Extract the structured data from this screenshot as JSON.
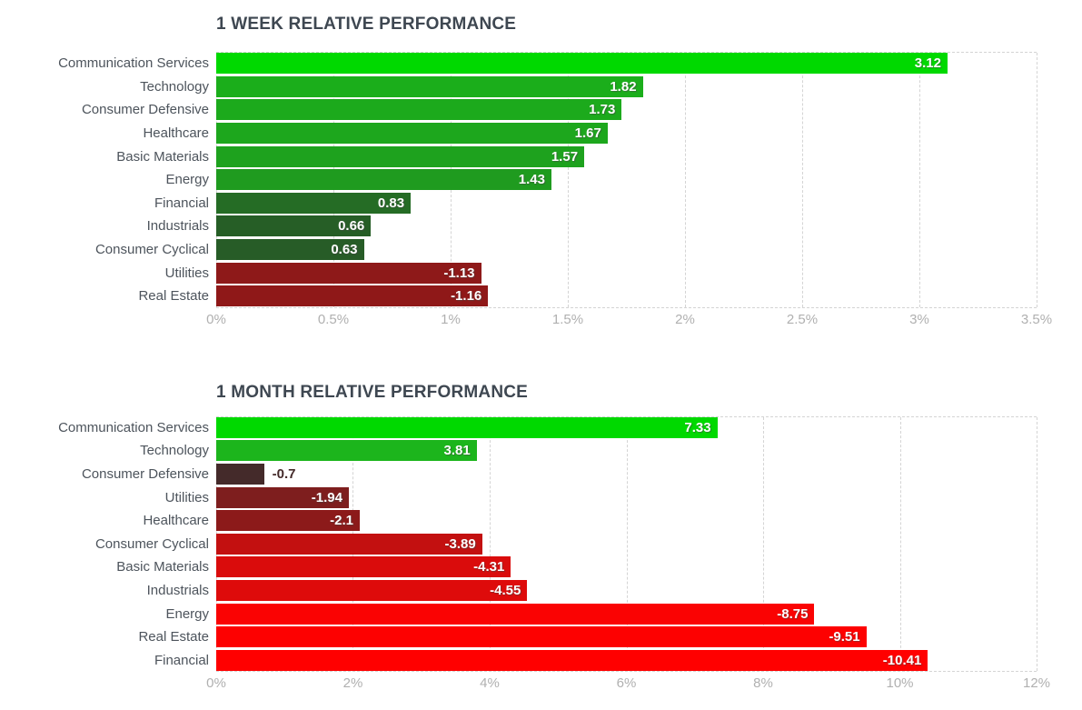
{
  "page": {
    "background": "#FFFFFF"
  },
  "styles": {
    "title_color": "#3E4751",
    "sector_label_color": "#4D545C",
    "axis_label_color": "#B0B0B0",
    "grid_color": "#D4D4D4",
    "bar_value_color": "#FFFFFF"
  },
  "chart_data": [
    {
      "type": "bar",
      "orientation": "horizontal",
      "title": "1 WEEK RELATIVE PERFORMANCE",
      "xlabel": "",
      "ylabel": "",
      "xlim": [
        0,
        3.5
      ],
      "grid": "dashed-vertical",
      "value_unit": "percent",
      "tick_labels": [
        "0%",
        "0.5%",
        "1%",
        "1.5%",
        "2%",
        "2.5%",
        "3%",
        "3.5%"
      ],
      "bars": [
        {
          "label": "Communication Services",
          "value": 3.12,
          "display": "3.12",
          "color": "#00D900"
        },
        {
          "label": "Technology",
          "value": 1.82,
          "display": "1.82",
          "color": "#1BAE1B"
        },
        {
          "label": "Consumer Defensive",
          "value": 1.73,
          "display": "1.73",
          "color": "#1CAA1C"
        },
        {
          "label": "Healthcare",
          "value": 1.67,
          "display": "1.67",
          "color": "#1DA71D"
        },
        {
          "label": "Basic Materials",
          "value": 1.57,
          "display": "1.57",
          "color": "#1EA21E"
        },
        {
          "label": "Energy",
          "value": 1.43,
          "display": "1.43",
          "color": "#1F9B1F"
        },
        {
          "label": "Financial",
          "value": 0.83,
          "display": "0.83",
          "color": "#256C25"
        },
        {
          "label": "Industrials",
          "value": 0.66,
          "display": "0.66",
          "color": "#265E26"
        },
        {
          "label": "Consumer Cyclical",
          "value": 0.63,
          "display": "0.63",
          "color": "#275C27"
        },
        {
          "label": "Utilities",
          "value": -1.13,
          "display": "-1.13",
          "color": "#8E1919"
        },
        {
          "label": "Real Estate",
          "value": -1.16,
          "display": "-1.16",
          "color": "#8F1818"
        }
      ]
    },
    {
      "type": "bar",
      "orientation": "horizontal",
      "title": "1 MONTH RELATIVE PERFORMANCE",
      "xlabel": "",
      "ylabel": "",
      "xlim": [
        0,
        12
      ],
      "grid": "dashed-vertical",
      "value_unit": "percent",
      "tick_labels": [
        "0%",
        "2%",
        "4%",
        "6%",
        "8%",
        "10%",
        "12%"
      ],
      "bars": [
        {
          "label": "Communication Services",
          "value": 7.33,
          "display": "7.33",
          "color": "#00D900"
        },
        {
          "label": "Technology",
          "value": 3.81,
          "display": "3.81",
          "color": "#1CB51C"
        },
        {
          "label": "Consumer Defensive",
          "value": -0.7,
          "display": "-0.7",
          "color": "#442A2A"
        },
        {
          "label": "Utilities",
          "value": -1.94,
          "display": "-1.94",
          "color": "#7E1E1E"
        },
        {
          "label": "Healthcare",
          "value": -2.1,
          "display": "-2.1",
          "color": "#8C1A1A"
        },
        {
          "label": "Consumer Cyclical",
          "value": -3.89,
          "display": "-3.89",
          "color": "#C31010"
        },
        {
          "label": "Basic Materials",
          "value": -4.31,
          "display": "-4.31",
          "color": "#DA0C0C"
        },
        {
          "label": "Industrials",
          "value": -4.55,
          "display": "-4.55",
          "color": "#DE0B0B"
        },
        {
          "label": "Energy",
          "value": -8.75,
          "display": "-8.75",
          "color": "#FA0303"
        },
        {
          "label": "Real Estate",
          "value": -9.51,
          "display": "-9.51",
          "color": "#FD0101"
        },
        {
          "label": "Financial",
          "value": -10.41,
          "display": "-10.41",
          "color": "#FF0000"
        }
      ]
    }
  ]
}
